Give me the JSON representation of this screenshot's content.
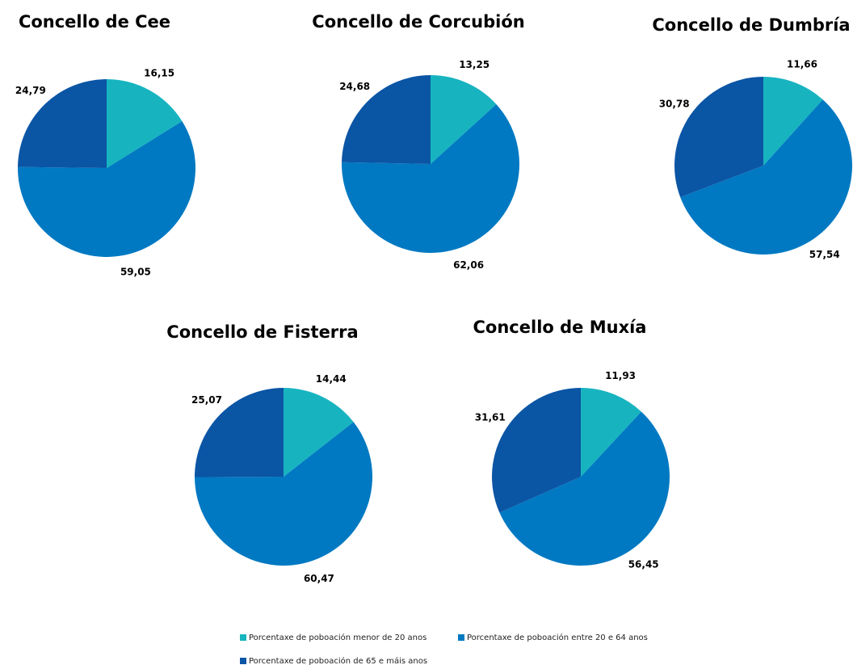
{
  "chart_data": [
    {
      "type": "pie",
      "title": "Concello de Cee",
      "values": [
        16.15,
        59.05,
        24.79
      ],
      "value_labels": [
        "16,15",
        "59,05",
        "24,79"
      ]
    },
    {
      "type": "pie",
      "title": "Concello de Corcubión",
      "values": [
        13.25,
        62.06,
        24.68
      ],
      "value_labels": [
        "13,25",
        "62,06",
        "24,68"
      ]
    },
    {
      "type": "pie",
      "title": "Concello de Dumbría",
      "values": [
        11.66,
        57.54,
        30.78
      ],
      "value_labels": [
        "11,66",
        "57,54",
        "30,78"
      ]
    },
    {
      "type": "pie",
      "title": "Concello de Fisterra",
      "values": [
        14.44,
        60.47,
        25.07
      ],
      "value_labels": [
        "14,44",
        "60,47",
        "25,07"
      ]
    },
    {
      "type": "pie",
      "title": "Concello de Muxía",
      "values": [
        11.93,
        56.45,
        31.61
      ],
      "value_labels": [
        "11,93",
        "56,45",
        "31,61"
      ]
    }
  ],
  "legend": {
    "items": [
      {
        "name": "Porcentaxe de poboación menor de 20 anos",
        "color": "#17b4c0"
      },
      {
        "name": "Porcentaxe de poboación entre 20 e 64 anos",
        "color": "#0079c2"
      },
      {
        "name": "Porcentaxe de poboación de 65 e máis anos",
        "color": "#0b55a5"
      }
    ]
  }
}
